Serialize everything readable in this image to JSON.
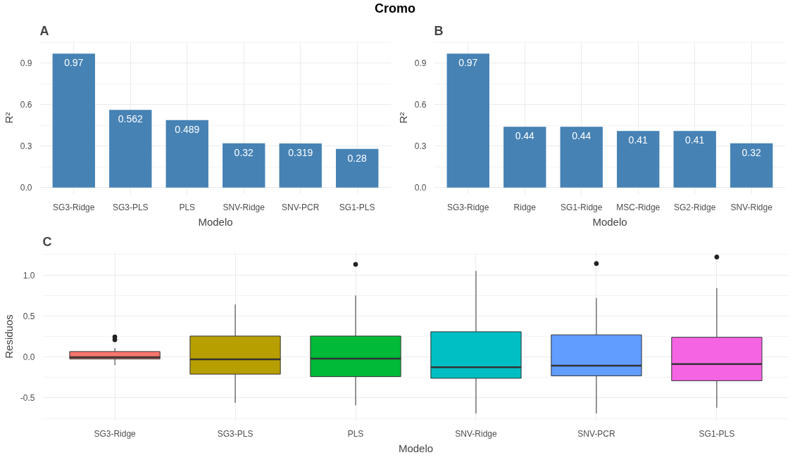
{
  "chart_data": [
    {
      "type": "bar",
      "title": "Cromo",
      "annotations": [
        "A"
      ],
      "xlabel": "Modelo",
      "ylabel": "R²",
      "categories": [
        "SG3-Ridge",
        "SG3-PLS",
        "PLS",
        "SNV-Ridge",
        "SNV-PCR",
        "SG1-PLS"
      ],
      "values": [
        0.97,
        0.562,
        0.489,
        0.32,
        0.319,
        0.28
      ],
      "color": "#4682b4",
      "data_labels": true,
      "ylim": [
        -0.05,
        1.06
      ],
      "yticks": [
        {
          "value": 0,
          "label": "0.0"
        },
        {
          "value": 0.3,
          "label": "0.3"
        },
        {
          "value": 0.6,
          "label": "0.6"
        },
        {
          "value": 0.9,
          "label": "0.9"
        }
      ],
      "grid": true
    },
    {
      "type": "bar",
      "annotations": [
        "B"
      ],
      "xlabel": "Modelo",
      "ylabel": "R²",
      "categories": [
        "SG3-Ridge",
        "Ridge",
        "SG1-Ridge",
        "MSC-Ridge",
        "SG2-Ridge",
        "SNV-Ridge"
      ],
      "values": [
        0.97,
        0.44,
        0.44,
        0.41,
        0.41,
        0.32
      ],
      "color": "#4682b4",
      "data_labels": true,
      "ylim": [
        -0.05,
        1.06
      ],
      "yticks": [
        {
          "value": 0,
          "label": "0.0"
        },
        {
          "value": 0.3,
          "label": "0.3"
        },
        {
          "value": 0.6,
          "label": "0.6"
        },
        {
          "value": 0.9,
          "label": "0.9"
        }
      ],
      "grid": true
    },
    {
      "type": "box",
      "annotations": [
        "C"
      ],
      "xlabel": "Modelo",
      "ylabel": "Residuos",
      "categories": [
        "SG3-Ridge",
        "SG3-PLS",
        "PLS",
        "SNV-Ridge",
        "SNV-PCR",
        "SG1-PLS"
      ],
      "colors": [
        "#f8766d",
        "#b79f00",
        "#00ba38",
        "#00bfc4",
        "#619cff",
        "#f564e3"
      ],
      "ylim": [
        -0.78,
        1.28
      ],
      "yticks": [
        {
          "value": -0.5,
          "label": "-0.5"
        },
        {
          "value": 0,
          "label": "0.0"
        },
        0.5,
        {
          "value": 1,
          "label": "1.0"
        }
      ],
      "grid": true,
      "boxes": [
        {
          "low": -0.1,
          "q1": -0.024,
          "median": -0.003,
          "q3": 0.066,
          "high": 0.11,
          "outliers": [
            0.21,
            0.245
          ]
        },
        {
          "low": -0.56,
          "q1": -0.21,
          "median": -0.03,
          "q3": 0.255,
          "high": 0.64
        },
        {
          "low": -0.59,
          "q1": -0.24,
          "median": -0.02,
          "q3": 0.255,
          "high": 0.75,
          "outliers": [
            1.13
          ]
        },
        {
          "low": -0.69,
          "q1": -0.26,
          "median": -0.126,
          "q3": 0.307,
          "high": 1.05
        },
        {
          "low": -0.69,
          "q1": -0.23,
          "median": -0.107,
          "q3": 0.27,
          "high": 0.72,
          "outliers": [
            1.14
          ]
        },
        {
          "low": -0.62,
          "q1": -0.29,
          "median": -0.086,
          "q3": 0.24,
          "high": 0.84,
          "outliers": [
            1.22
          ]
        }
      ]
    }
  ]
}
